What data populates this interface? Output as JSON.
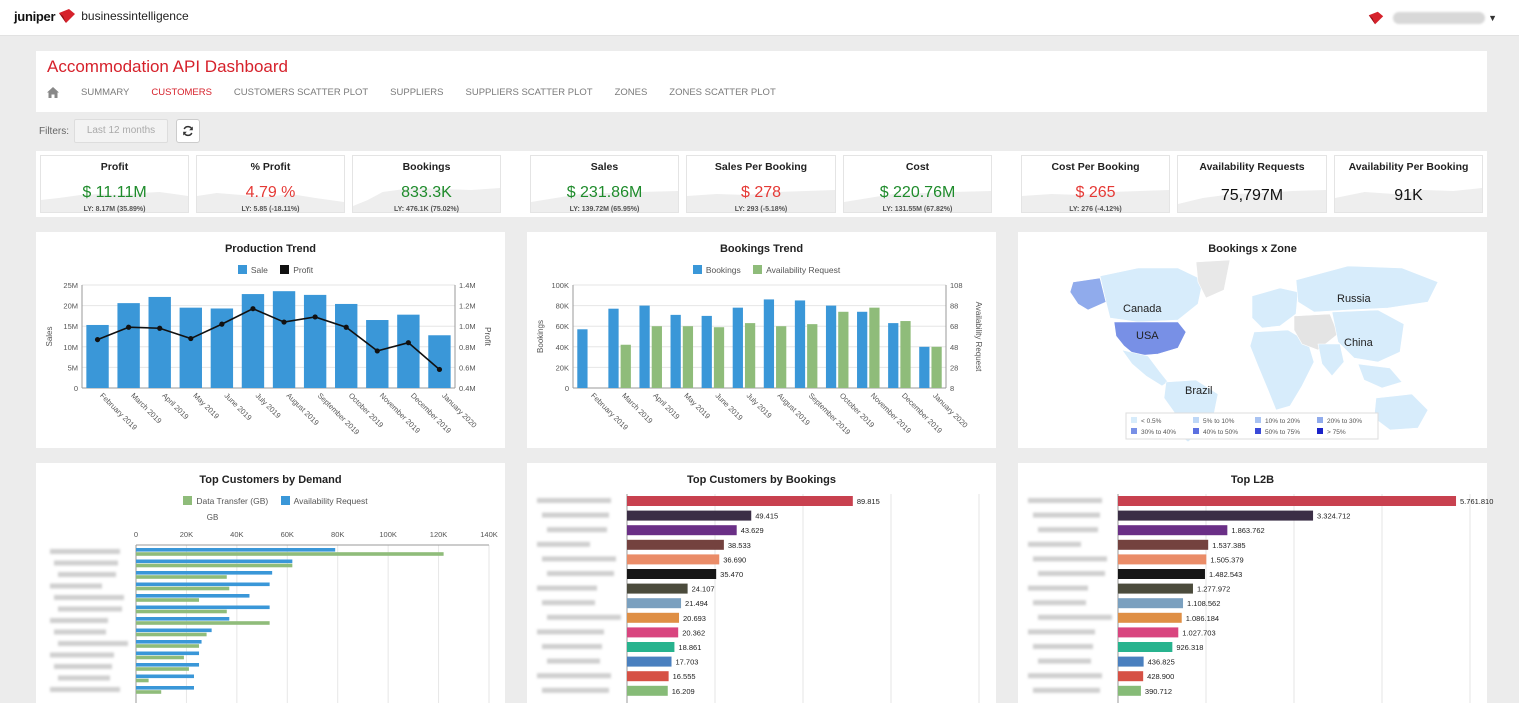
{
  "brand": {
    "name_bold": "juniper",
    "name_rest": "businessintelligence"
  },
  "dashboard": {
    "title": "Accommodation API Dashboard",
    "tabs": [
      {
        "label": "SUMMARY",
        "active": false
      },
      {
        "label": "CUSTOMERS",
        "active": true
      },
      {
        "label": "CUSTOMERS SCATTER PLOT",
        "active": false
      },
      {
        "label": "SUPPLIERS",
        "active": false
      },
      {
        "label": "SUPPLIERS SCATTER PLOT",
        "active": false
      },
      {
        "label": "ZONES",
        "active": false
      },
      {
        "label": "ZONES SCATTER PLOT",
        "active": false
      }
    ]
  },
  "filters": {
    "label": "Filters:",
    "period": "Last 12 months"
  },
  "kpis": [
    {
      "label": "Profit",
      "value": "$ 11.11M",
      "ly": "LY: 8.17M (35.89%)",
      "tone": "green"
    },
    {
      "label": "% Profit",
      "value": "4.79 %",
      "ly": "LY: 5.85 (-18.11%)",
      "tone": "red"
    },
    {
      "label": "Bookings",
      "value": "833.3K",
      "ly": "LY: 476.1K (75.02%)",
      "tone": "green"
    },
    {
      "label": "Sales",
      "value": "$ 231.86M",
      "ly": "LY: 139.72M (65.95%)",
      "tone": "green"
    },
    {
      "label": "Sales Per Booking",
      "value": "$ 278",
      "ly": "LY: 293 (-5.18%)",
      "tone": "red"
    },
    {
      "label": "Cost",
      "value": "$ 220.76M",
      "ly": "LY: 131.55M (67.82%)",
      "tone": "green"
    },
    {
      "label": "Cost Per Booking",
      "value": "$ 265",
      "ly": "LY: 276 (-4.12%)",
      "tone": "red"
    },
    {
      "label": "Availability Requests",
      "value": "75,797M",
      "ly": "",
      "tone": "black"
    },
    {
      "label": "Availability Per Booking",
      "value": "91K",
      "ly": "",
      "tone": "black"
    }
  ],
  "colors": {
    "accent": "#d6212b",
    "blue": "#3a97d8",
    "green": "#8fbc7a",
    "black": "#111111"
  },
  "chart_data": [
    {
      "id": "production_trend",
      "type": "bar",
      "title": "Production Trend",
      "categories": [
        "February 2019",
        "March 2019",
        "April 2019",
        "May 2019",
        "June 2019",
        "July 2019",
        "August 2019",
        "September 2019",
        "October 2019",
        "November 2019",
        "December 2019",
        "January 2020"
      ],
      "series": [
        {
          "name": "Sale",
          "kind": "bar",
          "axis": "left",
          "values": [
            15.3,
            20.6,
            22.1,
            19.5,
            19.3,
            22.8,
            23.5,
            22.6,
            20.4,
            16.5,
            17.8,
            12.8
          ]
        },
        {
          "name": "Profit",
          "kind": "line",
          "axis": "right",
          "values": [
            0.87,
            0.99,
            0.98,
            0.88,
            1.02,
            1.17,
            1.04,
            1.09,
            0.99,
            0.76,
            0.84,
            0.58
          ]
        }
      ],
      "ylabel": "Sales",
      "y2label": "Profit",
      "yticks": [
        "0",
        "5M",
        "10M",
        "15M",
        "20M",
        "25M"
      ],
      "ylim": [
        0,
        25
      ],
      "y2ticks": [
        "0.4M",
        "0.6M",
        "0.8M",
        "1.0M",
        "1.2M",
        "1.4M"
      ],
      "y2lim": [
        0.4,
        1.4
      ]
    },
    {
      "id": "bookings_trend",
      "type": "bar",
      "title": "Bookings Trend",
      "categories": [
        "February 2019",
        "March 2019",
        "April 2019",
        "May 2019",
        "June 2019",
        "July 2019",
        "August 2019",
        "September 2019",
        "October 2019",
        "November 2019",
        "December 2019",
        "January 2020"
      ],
      "series": [
        {
          "name": "Bookings",
          "axis": "left",
          "values": [
            57,
            77,
            80,
            71,
            70,
            78,
            86,
            85,
            80,
            74,
            63,
            40
          ]
        },
        {
          "name": "Availability Request",
          "axis": "right",
          "values": [
            null,
            50,
            68,
            68,
            67,
            71,
            68,
            70,
            82,
            86,
            73,
            48
          ]
        }
      ],
      "ylabel": "Bookings",
      "y2label": "Availability Request",
      "yticks": [
        "0",
        "20K",
        "40K",
        "60K",
        "80K",
        "100K"
      ],
      "ylim": [
        0,
        100
      ],
      "y2ticks": [
        "8",
        "28",
        "48",
        "68",
        "88",
        "108"
      ],
      "y2lim": [
        8,
        108
      ]
    },
    {
      "id": "bookings_zone",
      "type": "map",
      "title": "Bookings x Zone",
      "labels": [
        "Canada",
        "USA",
        "Russia",
        "China",
        "Brazil"
      ],
      "legend": [
        "< 0.5%",
        "5% to 10%",
        "10% to 20%",
        "20% to 30%",
        "30% to 40%",
        "40% to 50%",
        "50% to 75%",
        "> 75%"
      ],
      "legend_colors": [
        "#d7ecfb",
        "#bfd8f7",
        "#a9c3f2",
        "#90abec",
        "#7890e6",
        "#5c70e0",
        "#3a4ad8",
        "#1a22c8"
      ]
    },
    {
      "id": "top_customers_demand",
      "type": "bar",
      "orientation": "horizontal",
      "title": "Top Customers by Demand",
      "xlabel": "GB",
      "xticks": [
        "0",
        "20K",
        "40K",
        "60K",
        "80K",
        "100K",
        "120K",
        "140K"
      ],
      "xlim": [
        0,
        140
      ],
      "series": [
        {
          "name": "Data Transfer (GB)",
          "values": [
            122,
            62,
            36,
            37,
            25,
            36,
            53,
            28,
            25,
            19,
            21,
            5,
            10
          ]
        },
        {
          "name": "Availability Request",
          "values": [
            79,
            62,
            54,
            53,
            45,
            53,
            37,
            30,
            26,
            25,
            25,
            23,
            23
          ]
        }
      ]
    },
    {
      "id": "top_customers_bookings",
      "type": "bar",
      "orientation": "horizontal",
      "title": "Top Customers by Bookings",
      "values": [
        89815,
        49415,
        43629,
        38533,
        36690,
        35470,
        24107,
        21494,
        20693,
        20362,
        18861,
        17703,
        16555,
        16209
      ],
      "labels": [
        "89.815",
        "49.415",
        "43.629",
        "38.533",
        "36.690",
        "35.470",
        "24.107",
        "21.494",
        "20.693",
        "20.362",
        "18.861",
        "17.703",
        "16.555",
        "16.209"
      ],
      "colors": [
        "#c8414f",
        "#3b2e46",
        "#6a2f86",
        "#74423f",
        "#ea8c68",
        "#161616",
        "#4b4b3c",
        "#7aa0bf",
        "#df8f45",
        "#d9457f",
        "#27b38e",
        "#4a80bf",
        "#d65145",
        "#86bb77"
      ],
      "xlim": [
        0,
        140000
      ]
    },
    {
      "id": "top_l2b",
      "type": "bar",
      "orientation": "horizontal",
      "title": "Top L2B",
      "values": [
        5761810,
        3324712,
        1863762,
        1537385,
        1505379,
        1482543,
        1277972,
        1108562,
        1086184,
        1027703,
        926318,
        436825,
        428900,
        390712
      ],
      "labels": [
        "5.761.810",
        "3.324.712",
        "1.863.762",
        "1.537.385",
        "1.505.379",
        "1.482.543",
        "1.277.972",
        "1.108.562",
        "1.086.184",
        "1.027.703",
        "926.318",
        "436.825",
        "428.900",
        "390.712"
      ],
      "colors": [
        "#c8414f",
        "#3b2e46",
        "#6a2f86",
        "#74423f",
        "#ea8c68",
        "#161616",
        "#4b4b3c",
        "#7aa0bf",
        "#df8f45",
        "#d9457f",
        "#27b38e",
        "#4a80bf",
        "#d65145",
        "#86bb77"
      ],
      "xlim": [
        0,
        6000000
      ]
    }
  ]
}
